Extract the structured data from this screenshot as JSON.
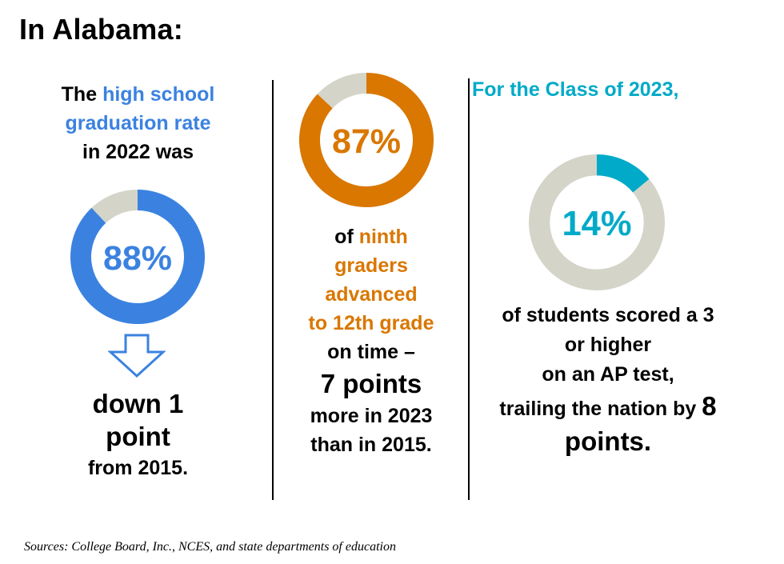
{
  "title": "In Alabama:",
  "colors": {
    "blue": "#3b82e0",
    "orange": "#d97700",
    "teal": "#00aac8",
    "remainder": "#d4d4c9"
  },
  "col1": {
    "intro": [
      [
        {
          "text": "The ",
          "accent": false
        },
        {
          "text": "high school",
          "accent": true
        }
      ],
      [
        {
          "text": "graduation rate",
          "accent": true
        }
      ],
      [
        {
          "text": "in 2022 was",
          "accent": false
        }
      ]
    ],
    "arrow": "down-arrow-icon",
    "detail": {
      "line1": "down 1",
      "line2": "point",
      "line3": "from 2015."
    }
  },
  "col2": {
    "lines": [
      [
        {
          "text": "of ",
          "accent": false
        },
        {
          "text": "ninth",
          "accent": true
        }
      ],
      [
        {
          "text": "graders",
          "accent": true
        }
      ],
      [
        {
          "text": "advanced",
          "accent": true
        }
      ],
      [
        {
          "text": "to 12th grade",
          "accent": true
        }
      ],
      [
        {
          "text": "on time –",
          "accent": false
        }
      ]
    ],
    "big": "7 points",
    "after": [
      "more in 2023",
      "than in 2015."
    ]
  },
  "col3": {
    "heading": "For the Class of 2023,",
    "lines": [
      "of students scored a 3",
      "or higher",
      "on an AP test,"
    ],
    "trail_text": "trailing the nation by ",
    "trail_num": "8",
    "last": "points."
  },
  "sources": "Sources: College Board, Inc., NCES, and state departments of education",
  "chart_data": [
    {
      "type": "pie",
      "donut": true,
      "categories": [
        "graduation rate",
        "remainder"
      ],
      "values": [
        88,
        12
      ],
      "center_label": "88%"
    },
    {
      "type": "pie",
      "donut": true,
      "categories": [
        "advanced on time",
        "remainder"
      ],
      "values": [
        87,
        13
      ],
      "center_label": "87%"
    },
    {
      "type": "pie",
      "donut": true,
      "categories": [
        "scored 3 or higher",
        "remainder"
      ],
      "values": [
        14,
        86
      ],
      "center_label": "14%"
    }
  ]
}
